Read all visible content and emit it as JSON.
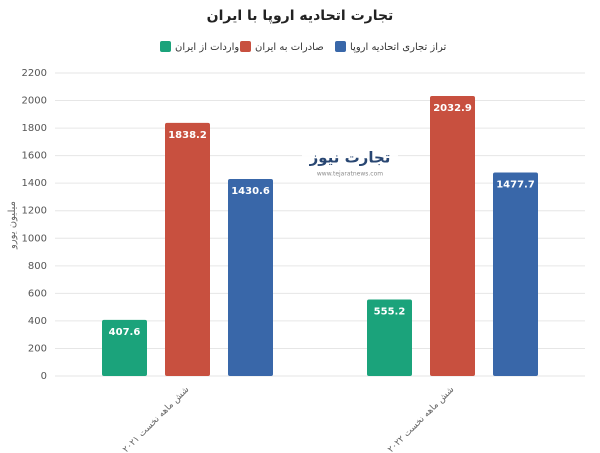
{
  "chart_data": {
    "type": "bar",
    "title": "تجارت اتحادیه اروپا با ایران",
    "y_label": "میلیون یورو",
    "watermark": {
      "name": "تجارت نیوز",
      "url": "www.tejaratnews.com"
    },
    "categories": [
      "شش ماهه نخست ۲۰۲۱",
      "شش ماهه نخست ۲۰۲۲"
    ],
    "series": [
      {
        "name": "واردات از ایران",
        "color": "#1ba37b",
        "values": [
          407.6,
          555.2
        ]
      },
      {
        "name": "صادرات به ایران",
        "color": "#c8503f",
        "values": [
          1838.2,
          2032.9
        ]
      },
      {
        "name": "تراز تجاری اتحادیه اروپا",
        "color": "#3967a9",
        "values": [
          1430.6,
          1477.7
        ]
      }
    ],
    "ylim": [
      0,
      2200
    ],
    "yticks": [
      0,
      200,
      400,
      600,
      800,
      1000,
      1200,
      1400,
      1600,
      1800,
      2000,
      2200
    ],
    "grid": true
  }
}
